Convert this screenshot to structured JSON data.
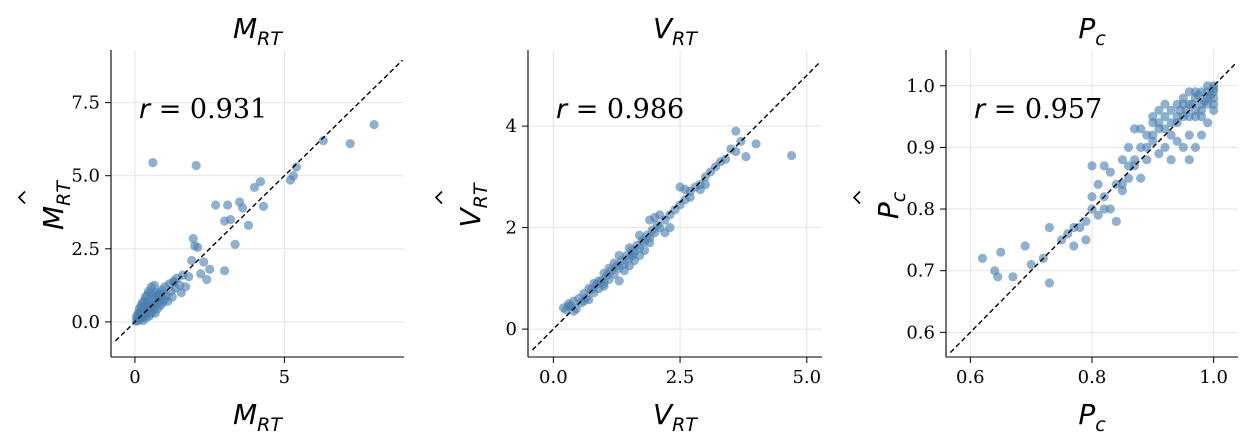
{
  "colors": {
    "points": "#4a7fb0",
    "grid": "#e3e3e3",
    "diagonal": "#000000"
  },
  "chart_data": [
    {
      "type": "scatter",
      "title": {
        "base": "M",
        "sub": "RT"
      },
      "xlabel": {
        "base": "M",
        "sub": "RT"
      },
      "ylabel": {
        "base": "M",
        "hat": true,
        "sub": "RT"
      },
      "annotation": {
        "symbol": "r",
        "text": " = 0.931"
      },
      "xlim": [
        -0.8,
        9.0
      ],
      "ylim": [
        -1.2,
        9.3
      ],
      "xticks": [
        0,
        5
      ],
      "xtick_labels": [
        "0",
        "5"
      ],
      "yticks": [
        0.0,
        2.5,
        5.0,
        7.5
      ],
      "ytick_labels": [
        "0.0",
        "2.5",
        "5.0",
        "7.5"
      ],
      "grid": true,
      "identity_line": true,
      "points": [
        [
          0.05,
          0.02
        ],
        [
          0.08,
          0.1
        ],
        [
          0.1,
          0.05
        ],
        [
          0.12,
          0.15
        ],
        [
          0.15,
          0.08
        ],
        [
          0.18,
          0.22
        ],
        [
          0.2,
          0.12
        ],
        [
          0.22,
          0.3
        ],
        [
          0.25,
          0.18
        ],
        [
          0.28,
          0.05
        ],
        [
          0.3,
          0.35
        ],
        [
          0.32,
          0.25
        ],
        [
          0.35,
          0.4
        ],
        [
          0.38,
          0.15
        ],
        [
          0.4,
          0.3
        ],
        [
          0.42,
          0.5
        ],
        [
          0.45,
          0.35
        ],
        [
          0.48,
          0.2
        ],
        [
          0.5,
          0.55
        ],
        [
          0.52,
          0.45
        ],
        [
          0.55,
          0.3
        ],
        [
          0.58,
          0.65
        ],
        [
          0.6,
          0.4
        ],
        [
          0.62,
          0.75
        ],
        [
          0.65,
          0.55
        ],
        [
          0.68,
          0.3
        ],
        [
          0.7,
          0.8
        ],
        [
          0.72,
          0.6
        ],
        [
          0.75,
          0.45
        ],
        [
          0.78,
          0.9
        ],
        [
          0.8,
          0.7
        ],
        [
          0.82,
          1.0
        ],
        [
          0.85,
          0.55
        ],
        [
          0.88,
          0.85
        ],
        [
          0.9,
          1.1
        ],
        [
          0.92,
          0.65
        ],
        [
          0.95,
          0.95
        ],
        [
          0.98,
          0.75
        ],
        [
          1.0,
          1.2
        ],
        [
          1.05,
          0.9
        ],
        [
          1.1,
          0.7
        ],
        [
          1.15,
          1.3
        ],
        [
          1.2,
          1.05
        ],
        [
          1.25,
          0.85
        ],
        [
          1.3,
          1.4
        ],
        [
          1.35,
          1.15
        ],
        [
          1.4,
          1.5
        ],
        [
          1.5,
          1.25
        ],
        [
          1.55,
          1.0
        ],
        [
          1.6,
          1.6
        ],
        [
          0.15,
          0.45
        ],
        [
          0.25,
          0.65
        ],
        [
          0.35,
          0.85
        ],
        [
          0.45,
          1.05
        ],
        [
          0.55,
          1.2
        ],
        [
          0.65,
          1.25
        ],
        [
          0.3,
          0.7
        ],
        [
          0.2,
          0.55
        ],
        [
          0.4,
          0.9
        ],
        [
          0.5,
          1.0
        ],
        [
          0.12,
          0.3
        ],
        [
          0.35,
          0.55
        ],
        [
          0.6,
          0.95
        ],
        [
          0.7,
          1.0
        ],
        [
          0.28,
          0.42
        ],
        [
          0.42,
          0.68
        ],
        [
          0.05,
          0.18
        ],
        [
          0.1,
          0.25
        ],
        [
          0.18,
          0.35
        ],
        [
          0.22,
          0.48
        ],
        [
          1.7,
          1.2
        ],
        [
          1.8,
          1.55
        ],
        [
          1.9,
          2.1
        ],
        [
          1.95,
          2.85
        ],
        [
          2.0,
          2.6
        ],
        [
          2.1,
          2.55
        ],
        [
          2.2,
          1.65
        ],
        [
          2.3,
          2.05
        ],
        [
          2.4,
          1.45
        ],
        [
          2.5,
          1.8
        ],
        [
          2.7,
          4.0
        ],
        [
          3.0,
          3.45
        ],
        [
          3.1,
          4.0
        ],
        [
          3.2,
          3.5
        ],
        [
          3.35,
          2.65
        ],
        [
          3.5,
          4.1
        ],
        [
          3.6,
          3.9
        ],
        [
          3.8,
          3.3
        ],
        [
          4.0,
          4.6
        ],
        [
          4.2,
          4.8
        ],
        [
          4.3,
          3.95
        ],
        [
          0.6,
          5.45
        ],
        [
          2.05,
          5.35
        ],
        [
          5.2,
          4.85
        ],
        [
          5.3,
          5.0
        ],
        [
          5.4,
          5.3
        ],
        [
          6.3,
          6.2
        ],
        [
          7.2,
          6.1
        ],
        [
          8.0,
          6.75
        ],
        [
          3.0,
          1.75
        ],
        [
          1.3,
          1.35
        ]
      ]
    },
    {
      "type": "scatter",
      "title": {
        "base": "V",
        "sub": "RT"
      },
      "xlabel": {
        "base": "V",
        "sub": "RT"
      },
      "ylabel": {
        "base": "V",
        "hat": true,
        "sub": "RT"
      },
      "annotation": {
        "symbol": "r",
        "text": " = 0.986"
      },
      "xlim": [
        -0.5,
        5.3
      ],
      "ylim": [
        -0.55,
        5.5
      ],
      "xticks": [
        0.0,
        2.5,
        5.0
      ],
      "xtick_labels": [
        "0.0",
        "2.5",
        "5.0"
      ],
      "yticks": [
        0,
        2,
        4
      ],
      "ytick_labels": [
        "0",
        "2",
        "4"
      ],
      "grid": true,
      "identity_line": true,
      "points": [
        [
          0.2,
          0.42
        ],
        [
          0.25,
          0.38
        ],
        [
          0.3,
          0.5
        ],
        [
          0.35,
          0.45
        ],
        [
          0.4,
          0.55
        ],
        [
          0.45,
          0.4
        ],
        [
          0.5,
          0.6
        ],
        [
          0.55,
          0.52
        ],
        [
          0.6,
          0.7
        ],
        [
          0.65,
          0.62
        ],
        [
          0.7,
          0.58
        ],
        [
          0.75,
          0.78
        ],
        [
          0.8,
          0.72
        ],
        [
          0.85,
          0.88
        ],
        [
          0.9,
          0.8
        ],
        [
          0.95,
          0.95
        ],
        [
          1.0,
          0.9
        ],
        [
          1.05,
          1.05
        ],
        [
          1.1,
          0.98
        ],
        [
          1.15,
          1.15
        ],
        [
          1.2,
          1.08
        ],
        [
          1.25,
          1.25
        ],
        [
          1.3,
          1.2
        ],
        [
          1.35,
          1.35
        ],
        [
          1.4,
          1.28
        ],
        [
          1.45,
          1.45
        ],
        [
          1.5,
          1.4
        ],
        [
          1.55,
          1.55
        ],
        [
          1.6,
          1.5
        ],
        [
          1.65,
          1.65
        ],
        [
          1.7,
          1.6
        ],
        [
          1.75,
          1.75
        ],
        [
          1.8,
          1.72
        ],
        [
          1.85,
          1.85
        ],
        [
          1.9,
          1.8
        ],
        [
          1.95,
          1.95
        ],
        [
          2.0,
          1.9
        ],
        [
          2.05,
          2.05
        ],
        [
          2.1,
          2.0
        ],
        [
          2.2,
          2.15
        ],
        [
          2.3,
          2.25
        ],
        [
          2.4,
          2.35
        ],
        [
          2.5,
          2.45
        ],
        [
          2.6,
          2.55
        ],
        [
          2.7,
          2.72
        ],
        [
          2.8,
          2.8
        ],
        [
          2.9,
          2.85
        ],
        [
          3.0,
          3.0
        ],
        [
          3.1,
          3.1
        ],
        [
          3.2,
          3.2
        ],
        [
          3.3,
          3.3
        ],
        [
          3.4,
          3.35
        ],
        [
          3.5,
          3.55
        ],
        [
          3.6,
          3.5
        ],
        [
          3.7,
          3.7
        ],
        [
          3.8,
          3.4
        ],
        [
          3.6,
          3.9
        ],
        [
          4.0,
          3.65
        ],
        [
          4.7,
          3.42
        ],
        [
          1.3,
          0.95
        ],
        [
          1.5,
          1.6
        ],
        [
          1.7,
          1.85
        ],
        [
          1.9,
          2.15
        ],
        [
          2.1,
          2.25
        ],
        [
          1.2,
          1.3
        ],
        [
          1.0,
          1.1
        ],
        [
          0.9,
          0.95
        ],
        [
          0.7,
          0.8
        ],
        [
          2.3,
          2.0
        ],
        [
          2.5,
          2.8
        ],
        [
          2.7,
          2.6
        ],
        [
          2.9,
          2.75
        ],
        [
          1.4,
          1.15
        ],
        [
          1.6,
          1.35
        ],
        [
          1.8,
          1.55
        ],
        [
          0.8,
          0.9
        ],
        [
          0.6,
          0.55
        ],
        [
          1.1,
          1.2
        ],
        [
          1.3,
          1.45
        ],
        [
          1.7,
          1.45
        ],
        [
          2.0,
          2.2
        ],
        [
          2.2,
          1.9
        ],
        [
          1.5,
          1.25
        ],
        [
          1.9,
          1.7
        ],
        [
          1.0,
          0.85
        ],
        [
          0.4,
          0.35
        ],
        [
          0.3,
          0.45
        ],
        [
          2.6,
          2.75
        ],
        [
          3.0,
          2.85
        ],
        [
          1.55,
          1.45
        ]
      ]
    },
    {
      "type": "scatter",
      "title": {
        "base": "P",
        "sub": "c"
      },
      "xlabel": {
        "base": "P",
        "sub": "c"
      },
      "ylabel": {
        "base": "P",
        "hat": true,
        "sub": "c"
      },
      "annotation": {
        "symbol": "r",
        "text": " = 0.957"
      },
      "xlim": [
        0.56,
        1.04
      ],
      "ylim": [
        0.56,
        1.058
      ],
      "xticks": [
        0.6,
        0.8,
        1.0
      ],
      "xtick_labels": [
        "0.6",
        "0.8",
        "1.0"
      ],
      "yticks": [
        0.6,
        0.7,
        0.8,
        0.9,
        1.0
      ],
      "ytick_labels": [
        "0.6",
        "0.7",
        "0.8",
        "0.9",
        "1.0"
      ],
      "grid": true,
      "identity_line": true,
      "points": [
        [
          0.62,
          0.72
        ],
        [
          0.64,
          0.7
        ],
        [
          0.645,
          0.69
        ],
        [
          0.65,
          0.73
        ],
        [
          0.67,
          0.69
        ],
        [
          0.69,
          0.74
        ],
        [
          0.7,
          0.71
        ],
        [
          0.72,
          0.72
        ],
        [
          0.73,
          0.77
        ],
        [
          0.73,
          0.68
        ],
        [
          0.75,
          0.75
        ],
        [
          0.76,
          0.76
        ],
        [
          0.77,
          0.74
        ],
        [
          0.78,
          0.77
        ],
        [
          0.79,
          0.75
        ],
        [
          0.8,
          0.8
        ],
        [
          0.8,
          0.87
        ],
        [
          0.81,
          0.79
        ],
        [
          0.82,
          0.87
        ],
        [
          0.82,
          0.82
        ],
        [
          0.83,
          0.8
        ],
        [
          0.84,
          0.84
        ],
        [
          0.84,
          0.78
        ],
        [
          0.85,
          0.83
        ],
        [
          0.85,
          0.88
        ],
        [
          0.86,
          0.85
        ],
        [
          0.86,
          0.9
        ],
        [
          0.87,
          0.87
        ],
        [
          0.87,
          0.93
        ],
        [
          0.88,
          0.9
        ],
        [
          0.88,
          0.85
        ],
        [
          0.89,
          0.92
        ],
        [
          0.89,
          0.88
        ],
        [
          0.9,
          0.94
        ],
        [
          0.9,
          0.91
        ],
        [
          0.91,
          0.93
        ],
        [
          0.91,
          0.89
        ],
        [
          0.92,
          0.95
        ],
        [
          0.92,
          0.9
        ],
        [
          0.93,
          0.96
        ],
        [
          0.93,
          0.92
        ],
        [
          0.94,
          0.97
        ],
        [
          0.94,
          0.94
        ],
        [
          0.95,
          0.98
        ],
        [
          0.95,
          0.95
        ],
        [
          0.96,
          0.97
        ],
        [
          0.96,
          0.92
        ],
        [
          0.97,
          0.98
        ],
        [
          0.97,
          0.95
        ],
        [
          0.98,
          0.99
        ],
        [
          0.98,
          0.96
        ],
        [
          0.99,
          0.99
        ],
        [
          0.99,
          0.97
        ],
        [
          1.0,
          1.0
        ],
        [
          1.0,
          0.98
        ],
        [
          1.0,
          0.96
        ],
        [
          0.99,
          0.94
        ],
        [
          0.98,
          0.92
        ],
        [
          0.97,
          0.9
        ],
        [
          0.96,
          0.88
        ],
        [
          0.95,
          0.9
        ],
        [
          0.94,
          0.91
        ],
        [
          0.93,
          0.88
        ],
        [
          0.92,
          0.93
        ],
        [
          0.91,
          0.96
        ],
        [
          0.9,
          0.95
        ],
        [
          0.88,
          0.93
        ],
        [
          0.87,
          0.88
        ],
        [
          0.86,
          0.87
        ],
        [
          0.85,
          0.84
        ],
        [
          0.83,
          0.86
        ],
        [
          0.82,
          0.8
        ],
        [
          0.81,
          0.84
        ],
        [
          0.8,
          0.82
        ],
        [
          0.79,
          0.78
        ],
        [
          0.77,
          0.77
        ],
        [
          0.99,
          1.0
        ],
        [
          1.0,
          0.99
        ],
        [
          0.98,
          0.97
        ],
        [
          0.97,
          0.99
        ],
        [
          0.96,
          0.99
        ],
        [
          0.95,
          0.97
        ],
        [
          0.94,
          0.95
        ],
        [
          0.99,
          0.98
        ],
        [
          1.0,
          0.97
        ],
        [
          0.98,
          0.95
        ],
        [
          0.97,
          0.96
        ],
        [
          0.96,
          0.95
        ],
        [
          0.93,
          0.94
        ],
        [
          0.92,
          0.97
        ],
        [
          0.91,
          0.94
        ],
        [
          0.9,
          0.92
        ],
        [
          0.89,
          0.9
        ],
        [
          1.0,
          0.995
        ],
        [
          0.995,
          0.985
        ],
        [
          0.985,
          0.975
        ],
        [
          0.975,
          0.985
        ],
        [
          0.965,
          0.97
        ],
        [
          0.955,
          0.96
        ],
        [
          0.945,
          0.96
        ]
      ]
    }
  ]
}
